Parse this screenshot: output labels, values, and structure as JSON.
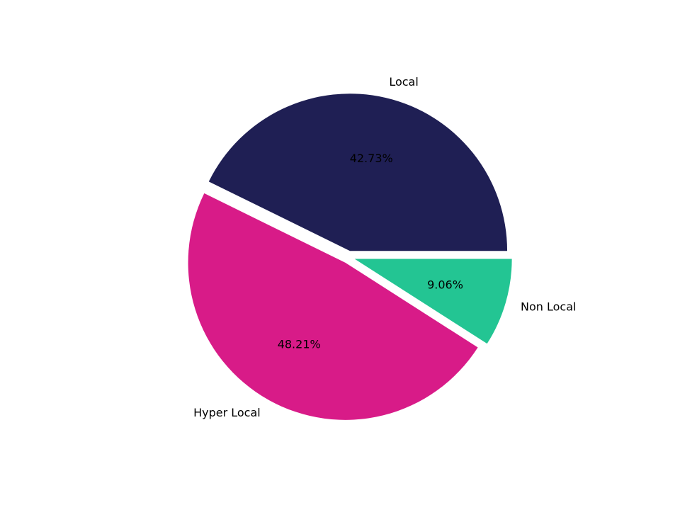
{
  "chart_data": {
    "type": "pie",
    "categories": [
      "Local",
      "Hyper Local",
      "Non Local"
    ],
    "values": [
      42.73,
      48.21,
      9.06
    ],
    "value_labels": [
      "42.73%",
      "48.21%",
      "9.06%"
    ],
    "colors": [
      "#1f1f54",
      "#d81b88",
      "#23c593"
    ]
  }
}
